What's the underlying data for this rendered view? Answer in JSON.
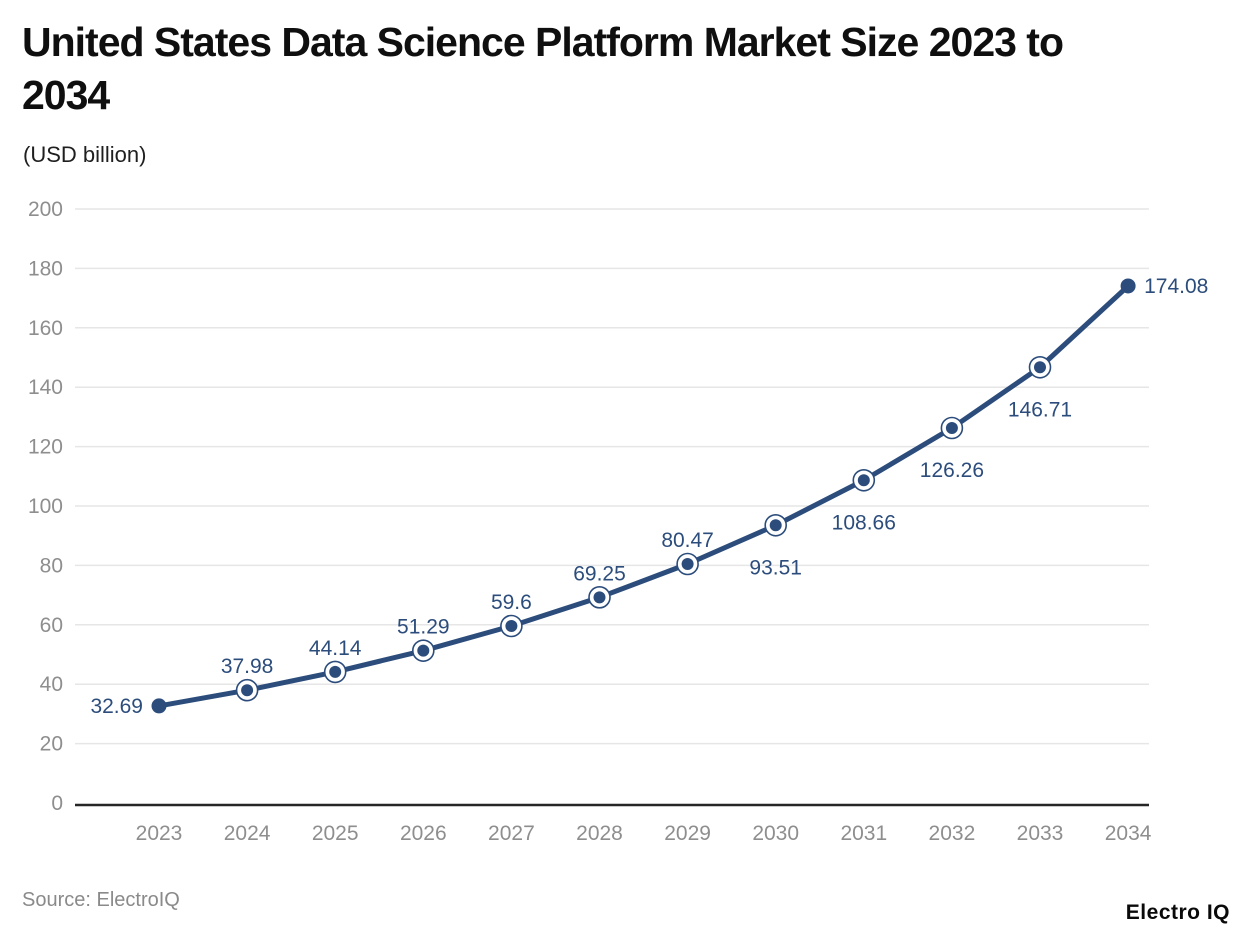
{
  "header": {
    "title_line1": "United States Data Science Platform Market Size 2023 to",
    "title_line2": "2034",
    "subtitle": "(USD billion)"
  },
  "footer": {
    "source": "Source: ElectroIQ",
    "brand": "Electro IQ"
  },
  "chart_data": {
    "type": "line",
    "title": "United States Data Science Platform Market Size 2023 to 2034",
    "subtitle": "(USD billion)",
    "xlabel": "",
    "ylabel": "USD billion",
    "categories": [
      "2023",
      "2024",
      "2025",
      "2026",
      "2027",
      "2028",
      "2029",
      "2030",
      "2031",
      "2032",
      "2033",
      "2034"
    ],
    "series": [
      {
        "name": "United States Data Science Platform Market Size",
        "values": [
          32.69,
          37.98,
          44.14,
          51.29,
          59.6,
          69.25,
          80.47,
          93.51,
          108.66,
          126.26,
          146.71,
          174.08
        ]
      }
    ],
    "point_labels": [
      "32.69",
      "37.98",
      "44.14",
      "51.29",
      "59.6",
      "69.25",
      "80.47",
      "93.51",
      "108.66",
      "126.26",
      "146.71",
      "174.08"
    ],
    "label_positions": [
      "left",
      "above",
      "above",
      "above",
      "above",
      "above",
      "above",
      "below",
      "below",
      "below",
      "below",
      "right"
    ],
    "ylim": [
      0,
      200
    ],
    "ytick_step": 20,
    "grid": true,
    "legend_position": "none",
    "colors": {
      "line": "#2c4d7c",
      "marker": "#2c4d7c",
      "marker_ring": "#ffffff",
      "data_label": "#2c4d7c",
      "grid": "#e6e6e6",
      "axis_line": "#262626",
      "tick_label": "#8e8e8e"
    }
  }
}
